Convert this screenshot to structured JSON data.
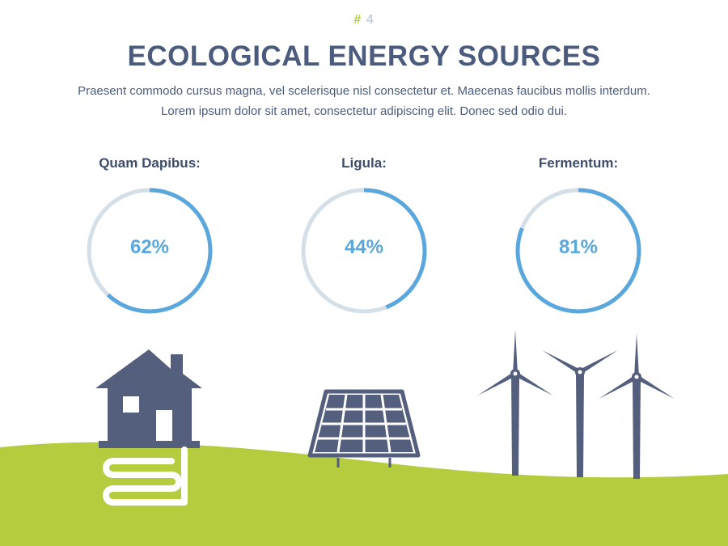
{
  "slide_number": {
    "hash": "#",
    "number": "4"
  },
  "title": "ECOLOGICAL ENERGY SOURCES",
  "description": {
    "line1": "Praesent commodo cursus magna, vel scelerisque nisl consectetur et. Maecenas faucibus mollis interdum.",
    "line2": "Lorem ipsum dolor sit amet, consectetur adipiscing elit. Donec sed odio dui."
  },
  "gauges": [
    {
      "label": "Quam Dapibus:",
      "value": 62,
      "display": "62%"
    },
    {
      "label": "Ligula:",
      "value": 44,
      "display": "44%"
    },
    {
      "label": "Fermentum:",
      "value": 81,
      "display": "81%"
    }
  ],
  "colors": {
    "accent": "#5aa7de",
    "track": "#d5dfe8",
    "title": "#4b5b7d",
    "icon": "#535f7c",
    "ground": "#b5cc3f",
    "hash": "#b7cc3f"
  },
  "icons": [
    "house-geothermal-icon",
    "solar-panel-icon",
    "wind-turbines-icon"
  ]
}
